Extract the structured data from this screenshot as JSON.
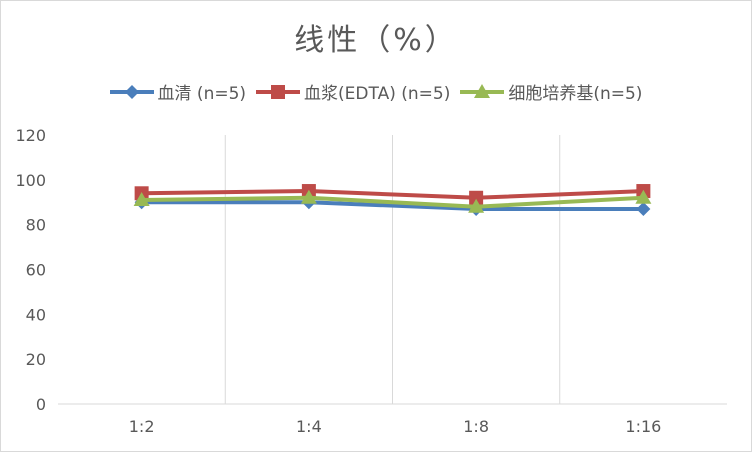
{
  "chart_data": {
    "type": "line",
    "title": "线性（%）",
    "categories": [
      "1:2",
      "1:4",
      "1:8",
      "1:16"
    ],
    "ylim": [
      0,
      120
    ],
    "yticks": [
      0,
      20,
      40,
      60,
      80,
      100,
      120
    ],
    "xlabel": "",
    "ylabel": "",
    "legend_position": "top",
    "series": [
      {
        "name": "血清 (n=5)",
        "color": "#4a7ebb",
        "marker": "diamond",
        "values": [
          90,
          90,
          87,
          87
        ]
      },
      {
        "name": "血浆(EDTA) (n=5)",
        "color": "#be4b48",
        "marker": "square",
        "values": [
          94,
          95,
          92,
          95
        ]
      },
      {
        "name": "细胞培养基(n=5)",
        "color": "#98b954",
        "marker": "triangle",
        "values": [
          91,
          92,
          88,
          92
        ]
      }
    ]
  }
}
